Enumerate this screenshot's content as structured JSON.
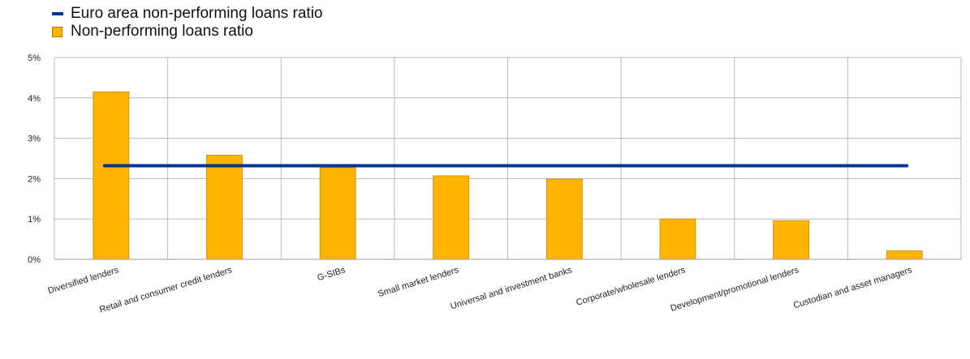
{
  "chart_data": {
    "type": "bar",
    "categories": [
      "Diversified lenders",
      "Retail and consumer credit lenders",
      "G-SIBs",
      "Small market lenders",
      "Universal and investment banks",
      "Corporate/wholesale lenders",
      "Development/promotional lenders",
      "Custodian and asset managers"
    ],
    "series": [
      {
        "name": "Non-performing loans ratio",
        "type": "bar",
        "color": "#FFB400",
        "values": [
          4.15,
          2.58,
          2.27,
          2.07,
          1.99,
          1.0,
          0.96,
          0.21
        ]
      },
      {
        "name": "Euro area non-performing loans ratio",
        "type": "line",
        "color": "#003299",
        "values": [
          2.32,
          2.32,
          2.32,
          2.32,
          2.32,
          2.32,
          2.32,
          2.32
        ]
      }
    ],
    "yticks": [
      "0%",
      "1%",
      "2%",
      "3%",
      "4%",
      "5%"
    ],
    "ylim": [
      0,
      5
    ],
    "yunit": "%",
    "grid": true,
    "legend_position": "top-left"
  }
}
